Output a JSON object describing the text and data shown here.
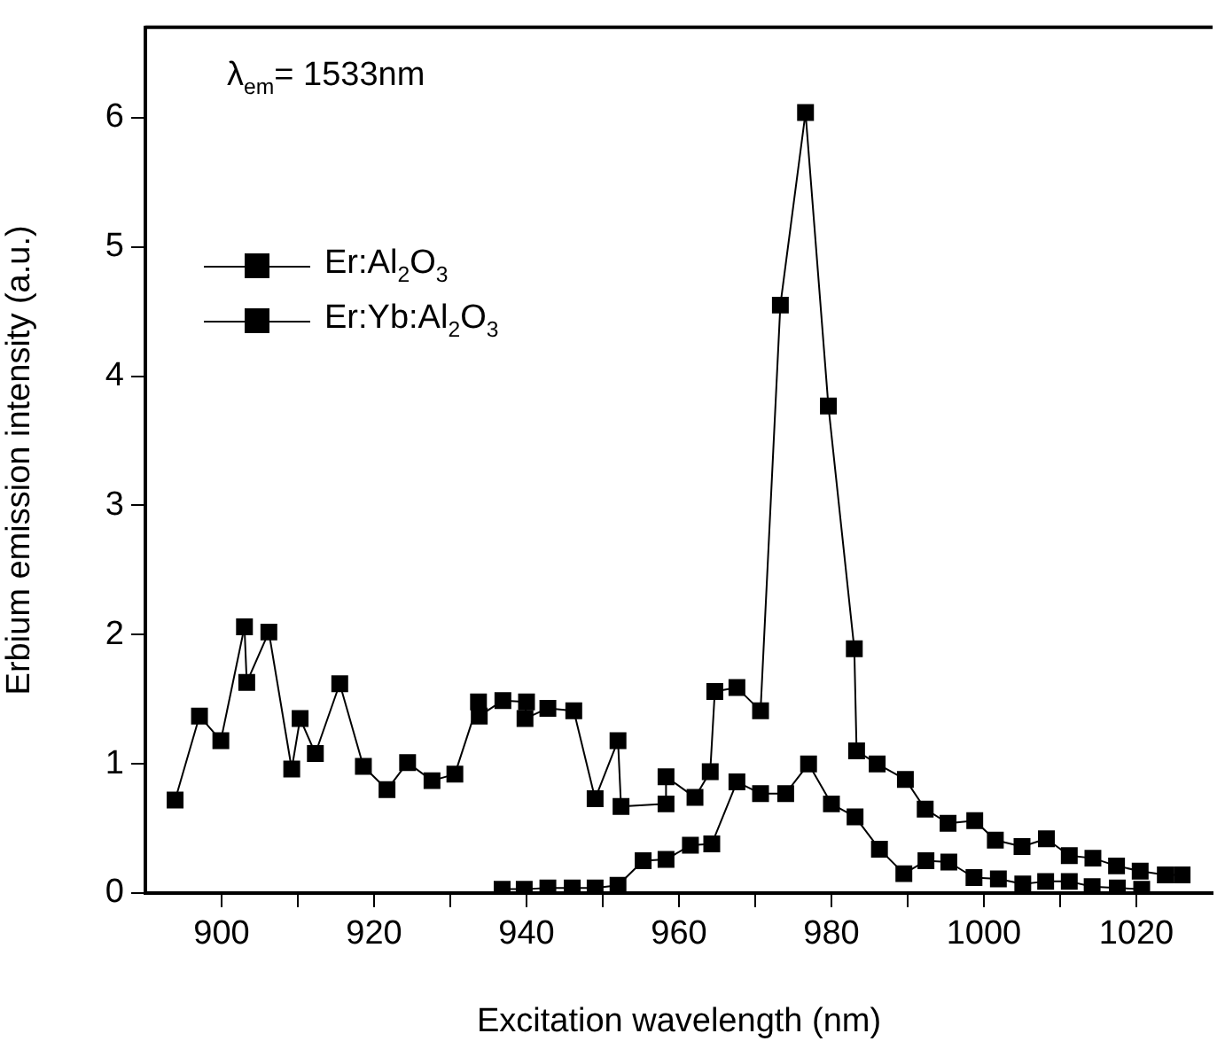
{
  "chart_data": {
    "type": "line",
    "xlabel": "Excitation wavelength (nm)",
    "ylabel": "Erbium emission intensity (a.u.)",
    "annotations": [
      "λ$_{em}$= 1533nm"
    ],
    "xlim": [
      890,
      1030
    ],
    "ylim": [
      0,
      6.7
    ],
    "xticks": [
      900,
      {
        "value": 910,
        "label": null
      },
      920,
      {
        "value": 930,
        "label": null
      },
      940,
      {
        "value": 950,
        "label": null
      },
      960,
      {
        "value": 970,
        "label": null
      },
      980,
      {
        "value": 990,
        "label": null
      },
      1000,
      {
        "value": 1010,
        "label": null
      },
      1020
    ],
    "yticks": [
      0,
      1,
      2,
      3,
      4,
      5,
      6
    ],
    "legend": "top left",
    "marker": "square",
    "line_style": "solid",
    "series": [
      {
        "name": "Er:Al$_{2}$O$_{3}$",
        "color": "#000000",
        "x": [
          936.8,
          939.7,
          942.8,
          946,
          949,
          952,
          955.3,
          958.3,
          961.5,
          964.3,
          967.6,
          970.7,
          974,
          977,
          980,
          983.1,
          986.3,
          989.5,
          992.4,
          995.4,
          998.7,
          1001.9,
          1005.1,
          1008.1,
          1011.2,
          1014.2,
          1017.5,
          1020.7
        ],
        "values": [
          0.03,
          0.03,
          0.04,
          0.04,
          0.04,
          0.06,
          0.25,
          0.26,
          0.37,
          0.38,
          0.86,
          0.77,
          0.77,
          1.0,
          0.69,
          0.59,
          0.34,
          0.15,
          0.25,
          0.24,
          0.12,
          0.11,
          0.07,
          0.09,
          0.09,
          0.05,
          0.04,
          0.03
        ]
      },
      {
        "name": "Er:Yb:Al$_{2}$O$_{3}$",
        "color": "#000000",
        "x": [
          893.9,
          897.1,
          899.9,
          903,
          903.3,
          906.2,
          909.2,
          910.3,
          912.3,
          915.5,
          918.6,
          921.7,
          924.4,
          927.6,
          930.6,
          933.7,
          933.8,
          936.9,
          940,
          939.8,
          942.8,
          946.2,
          949,
          952,
          952.4,
          958.3,
          958.3,
          962.1,
          964.1,
          964.7,
          967.6,
          970.7,
          973.3,
          976.6,
          979.6,
          983,
          983.3,
          986,
          989.7,
          992.3,
          995.3,
          998.8,
          1001.5,
          1005,
          1008.2,
          1011.2,
          1014.3,
          1017.4,
          1020.5,
          1023.8,
          1026
        ],
        "values": [
          0.72,
          1.37,
          1.18,
          2.06,
          1.63,
          2.02,
          0.96,
          1.35,
          1.08,
          1.62,
          0.98,
          0.8,
          1.01,
          0.87,
          0.92,
          1.48,
          1.37,
          1.49,
          1.48,
          1.35,
          1.43,
          1.41,
          0.73,
          1.18,
          0.67,
          0.69,
          0.9,
          0.74,
          0.94,
          1.56,
          1.59,
          1.41,
          4.55,
          6.04,
          3.77,
          1.89,
          1.1,
          1.0,
          0.88,
          0.65,
          0.54,
          0.56,
          0.41,
          0.36,
          0.42,
          0.29,
          0.27,
          0.21,
          0.17,
          0.14,
          0.14
        ]
      }
    ]
  }
}
